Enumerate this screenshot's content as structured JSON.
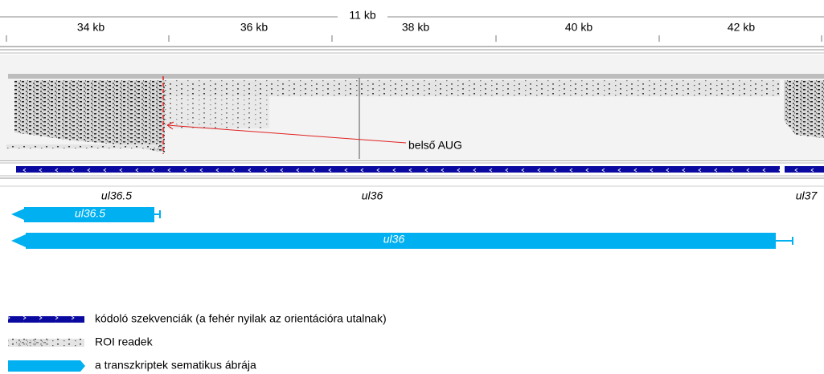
{
  "ruler": {
    "span": "11 kb",
    "ticks": [
      "34 kb",
      "36 kb",
      "38 kb",
      "40 kb",
      "42 kb"
    ]
  },
  "annotation": "belső AUG",
  "genes": [
    "ul36.5",
    "ul36",
    "ul37"
  ],
  "transcripts": [
    "ul36.5",
    "ul36"
  ],
  "legend": [
    "kódoló szekvenciák (a fehér nyilak az orientációra utalnak)",
    "ROI readek",
    "a transzkriptek sematikus ábrája"
  ]
}
